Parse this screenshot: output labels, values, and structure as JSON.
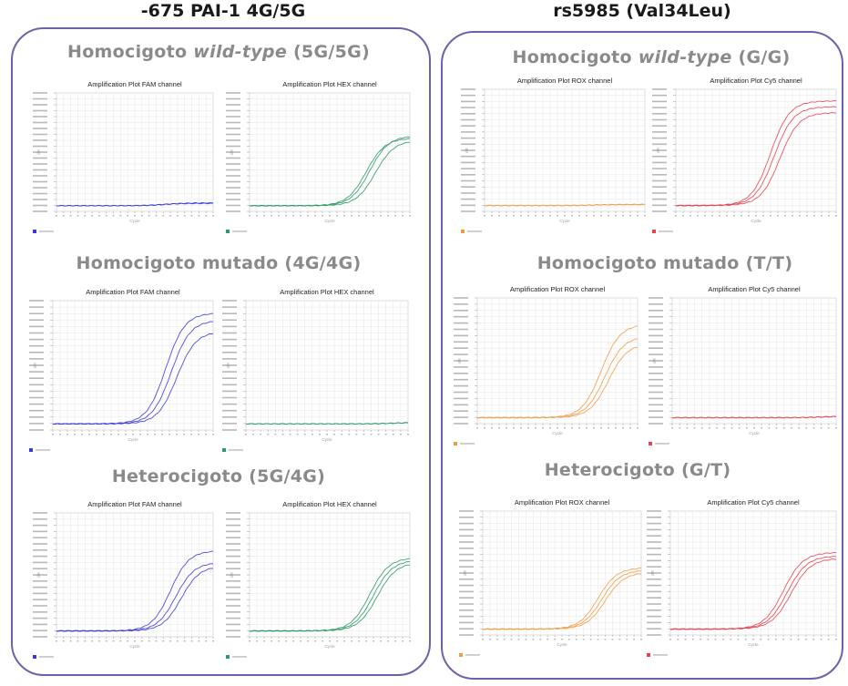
{
  "page": {
    "left_title": "-675 PAI-1 4G/5G",
    "right_title": "rs5985 (Val34Leu)"
  },
  "sections": {
    "left_wt": {
      "pre": "Homocigoto ",
      "em": "wild-type",
      "post": " (5G/5G)"
    },
    "left_mut": {
      "text": "Homocigoto mutado (4G/4G)"
    },
    "left_het": {
      "text": "Heterocigoto (5G/4G)"
    },
    "right_wt": {
      "pre": "Homocigoto ",
      "em": "wild-type",
      "post": " (G/G)"
    },
    "right_mut": {
      "text": "Homocigoto mutado (T/T)"
    },
    "right_het": {
      "text": "Heterocigoto (G/T)"
    }
  },
  "colors": {
    "FAM": "#3b3bdc",
    "HEX": "#2e9a66",
    "ROX": "#f09c46",
    "Cy5": "#e8424f",
    "panel_border": "#6b63a8",
    "section_text": "#8a8a8a"
  },
  "chart_data": [
    {
      "id": "l-wt-fam",
      "type": "line",
      "title": "Amplification Plot FAM channel",
      "channel": "FAM",
      "xlabel": "Cycle",
      "ylabel": "dR",
      "xlim": [
        1,
        45
      ],
      "ylim": [
        -0.05,
        1
      ],
      "grid": true,
      "series": [
        {
          "amp": 0.02,
          "mid": 30
        },
        {
          "amp": 0.025,
          "mid": 32
        }
      ]
    },
    {
      "id": "l-wt-hex",
      "type": "line",
      "title": "Amplification Plot HEX channel",
      "channel": "HEX",
      "xlabel": "Cycle",
      "ylabel": "dR",
      "xlim": [
        1,
        45
      ],
      "ylim": [
        -0.05,
        1
      ],
      "grid": true,
      "series": [
        {
          "amp": 0.6,
          "mid": 33
        },
        {
          "amp": 0.62,
          "mid": 34
        },
        {
          "amp": 0.58,
          "mid": 35.5
        }
      ]
    },
    {
      "id": "l-mut-fam",
      "type": "line",
      "title": "Amplification Plot FAM channel",
      "channel": "FAM",
      "xlabel": "Cycle",
      "ylabel": "dR",
      "xlim": [
        1,
        45
      ],
      "ylim": [
        -0.05,
        1
      ],
      "grid": true,
      "series": [
        {
          "amp": 0.9,
          "mid": 32
        },
        {
          "amp": 0.84,
          "mid": 33.5
        },
        {
          "amp": 0.75,
          "mid": 35
        }
      ]
    },
    {
      "id": "l-mut-hex",
      "type": "line",
      "title": "Amplification Plot HEX channel",
      "channel": "HEX",
      "xlabel": "Cycle",
      "ylabel": "dR",
      "xlim": [
        1,
        45
      ],
      "ylim": [
        -0.05,
        1
      ],
      "grid": true,
      "series": [
        {
          "amp": 0.01,
          "mid": 40
        },
        {
          "amp": 0.012,
          "mid": 42
        }
      ]
    },
    {
      "id": "l-het-fam",
      "type": "line",
      "title": "Amplification Plot FAM channel",
      "channel": "FAM",
      "xlabel": "Cycle",
      "ylabel": "dR",
      "xlim": [
        1,
        45
      ],
      "ylim": [
        -0.05,
        1
      ],
      "grid": true,
      "series": [
        {
          "amp": 0.68,
          "mid": 33
        },
        {
          "amp": 0.58,
          "mid": 34.5
        },
        {
          "amp": 0.55,
          "mid": 36
        }
      ]
    },
    {
      "id": "l-het-hex",
      "type": "line",
      "title": "Amplification Plot HEX channel",
      "channel": "HEX",
      "xlabel": "Cycle",
      "ylabel": "dR",
      "xlim": [
        1,
        45
      ],
      "ylim": [
        -0.05,
        1
      ],
      "grid": true,
      "series": [
        {
          "amp": 0.62,
          "mid": 34
        },
        {
          "amp": 0.6,
          "mid": 35
        },
        {
          "amp": 0.58,
          "mid": 36
        }
      ]
    },
    {
      "id": "r-wt-rox",
      "type": "line",
      "title": "Amplification Plot ROX channel",
      "channel": "ROX",
      "xlabel": "Cycle",
      "ylabel": "dR",
      "xlim": [
        1,
        45
      ],
      "ylim": [
        -0.05,
        1
      ],
      "grid": true,
      "series": [
        {
          "amp": 0.008,
          "mid": 30
        },
        {
          "amp": 0.01,
          "mid": 32
        }
      ]
    },
    {
      "id": "r-wt-cy5",
      "type": "line",
      "title": "Amplification Plot Cy5 channel",
      "channel": "Cy5",
      "xlabel": "Cycle",
      "ylabel": "dR",
      "xlim": [
        1,
        45
      ],
      "ylim": [
        -0.05,
        1
      ],
      "grid": true,
      "series": [
        {
          "amp": 0.9,
          "mid": 27
        },
        {
          "amp": 0.85,
          "mid": 28
        },
        {
          "amp": 0.8,
          "mid": 29.5
        }
      ]
    },
    {
      "id": "r-mut-rox",
      "type": "line",
      "title": "Amplification Plot ROX channel",
      "channel": "ROX",
      "xlabel": "Cycle",
      "ylabel": "dR",
      "xlim": [
        1,
        45
      ],
      "ylim": [
        -0.05,
        1
      ],
      "grid": true,
      "series": [
        {
          "amp": 0.78,
          "mid": 35
        },
        {
          "amp": 0.68,
          "mid": 36
        },
        {
          "amp": 0.62,
          "mid": 37
        }
      ]
    },
    {
      "id": "r-mut-cy5",
      "type": "line",
      "title": "Amplification Plot Cy5 channel",
      "channel": "Cy5",
      "xlabel": "Cycle",
      "ylabel": "dR",
      "xlim": [
        1,
        45
      ],
      "ylim": [
        -0.05,
        1
      ],
      "grid": true,
      "series": [
        {
          "amp": 0.01,
          "mid": 40
        },
        {
          "amp": 0.012,
          "mid": 42
        }
      ]
    },
    {
      "id": "r-het-rox",
      "type": "line",
      "title": "Amplification Plot ROX channel",
      "channel": "ROX",
      "xlabel": "Cycle",
      "ylabel": "dR",
      "xlim": [
        1,
        45
      ],
      "ylim": [
        -0.05,
        1
      ],
      "grid": true,
      "series": [
        {
          "amp": 0.52,
          "mid": 33
        },
        {
          "amp": 0.5,
          "mid": 34
        },
        {
          "amp": 0.48,
          "mid": 35
        }
      ]
    },
    {
      "id": "r-het-cy5",
      "type": "line",
      "title": "Amplification Plot Cy5 channel",
      "channel": "Cy5",
      "xlabel": "Cycle",
      "ylabel": "dR",
      "xlim": [
        1,
        45
      ],
      "ylim": [
        -0.05,
        1
      ],
      "grid": true,
      "series": [
        {
          "amp": 0.65,
          "mid": 31
        },
        {
          "amp": 0.62,
          "mid": 32
        },
        {
          "amp": 0.6,
          "mid": 33
        }
      ]
    }
  ]
}
